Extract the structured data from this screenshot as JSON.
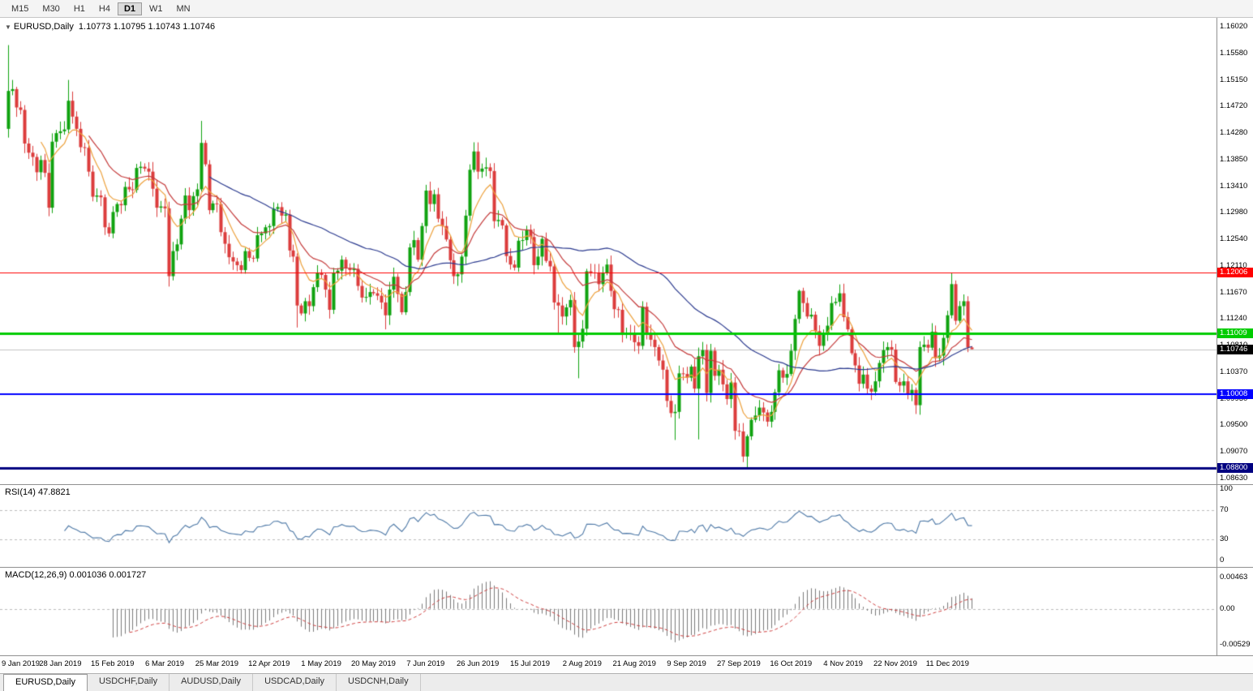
{
  "toolbar": {
    "timeframes": [
      "M15",
      "M30",
      "H1",
      "H4",
      "D1",
      "W1",
      "MN"
    ],
    "active": "D1"
  },
  "chart": {
    "title_symbol": "EURUSD,Daily",
    "title_ohlc": "1.10773 1.10795 1.10743 1.10746"
  },
  "chart_data": {
    "type": "candlestick",
    "symbol": "EURUSD",
    "timeframe": "Daily",
    "x_labels": [
      "9 Jan 2019",
      "28 Jan 2019",
      "15 Feb 2019",
      "6 Mar 2019",
      "25 Mar 2019",
      "12 Apr 2019",
      "1 May 2019",
      "20 May 2019",
      "7 Jun 2019",
      "26 Jun 2019",
      "15 Jul 2019",
      "2 Aug 2019",
      "21 Aug 2019",
      "9 Sep 2019",
      "27 Sep 2019",
      "16 Oct 2019",
      "4 Nov 2019",
      "22 Nov 2019",
      "11 Dec 2019"
    ],
    "x_label_bar_indices": [
      0,
      13,
      26,
      39,
      52,
      65,
      78,
      91,
      104,
      117,
      130,
      143,
      156,
      169,
      182,
      195,
      208,
      221,
      234
    ],
    "price_axis_ticks": [
      "1.16020",
      "1.15580",
      "1.15150",
      "1.14720",
      "1.14280",
      "1.13850",
      "1.13410",
      "1.12980",
      "1.12540",
      "1.12110",
      "1.11670",
      "1.11240",
      "1.10810",
      "1.10370",
      "1.09930",
      "1.09500",
      "1.09070",
      "1.08630"
    ],
    "first_open": 1.1435,
    "closes": [
      1.1497,
      1.15,
      1.147,
      1.1466,
      1.1411,
      1.1396,
      1.1389,
      1.1364,
      1.1384,
      1.1363,
      1.1306,
      1.1414,
      1.1428,
      1.1431,
      1.1434,
      1.1481,
      1.1455,
      1.1435,
      1.1405,
      1.1404,
      1.1365,
      1.1324,
      1.1326,
      1.1323,
      1.1274,
      1.1264,
      1.1299,
      1.1312,
      1.131,
      1.134,
      1.1336,
      1.1335,
      1.1371,
      1.1373,
      1.137,
      1.1365,
      1.1337,
      1.1306,
      1.1308,
      1.1305,
      1.1194,
      1.1235,
      1.1246,
      1.1288,
      1.1326,
      1.1302,
      1.1325,
      1.1336,
      1.1412,
      1.1377,
      1.1302,
      1.1313,
      1.1312,
      1.1266,
      1.1247,
      1.1225,
      1.1218,
      1.1212,
      1.1204,
      1.1235,
      1.1224,
      1.1223,
      1.1261,
      1.1264,
      1.1274,
      1.1276,
      1.1304,
      1.1307,
      1.1293,
      1.1295,
      1.1236,
      1.1226,
      1.1146,
      1.1133,
      1.1153,
      1.1145,
      1.1176,
      1.12,
      1.1196,
      1.1172,
      1.1139,
      1.1199,
      1.1203,
      1.1221,
      1.1207,
      1.1204,
      1.1206,
      1.1178,
      1.1159,
      1.116,
      1.1168,
      1.1166,
      1.1162,
      1.1151,
      1.113,
      1.1172,
      1.1193,
      1.1165,
      1.1135,
      1.1168,
      1.1241,
      1.1253,
      1.1221,
      1.1276,
      1.1334,
      1.1312,
      1.1328,
      1.1288,
      1.1276,
      1.1254,
      1.122,
      1.1194,
      1.1197,
      1.1226,
      1.1293,
      1.1368,
      1.1398,
      1.1365,
      1.137,
      1.1372,
      1.1366,
      1.1284,
      1.1286,
      1.1277,
      1.1227,
      1.1213,
      1.1208,
      1.1252,
      1.1253,
      1.127,
      1.1258,
      1.1212,
      1.1226,
      1.1255,
      1.1219,
      1.121,
      1.1151,
      1.1146,
      1.1128,
      1.1143,
      1.1155,
      1.1078,
      1.1087,
      1.1108,
      1.1202,
      1.12,
      1.1199,
      1.1181,
      1.1199,
      1.1213,
      1.117,
      1.114,
      1.1139,
      1.1099,
      1.11,
      1.1098,
      1.1086,
      1.108,
      1.1144,
      1.11,
      1.109,
      1.1078,
      1.1056,
      1.1041,
      1.099,
      1.097,
      1.0972,
      1.1035,
      1.1034,
      1.1028,
      1.1046,
      1.101,
      1.1063,
      1.1073,
      1.1003,
      1.1072,
      1.1031,
      1.1041,
      1.1017,
      1.0993,
      1.102,
      1.0941,
      1.094,
      1.0899,
      1.0932,
      1.0959,
      1.0966,
      1.0979,
      1.0971,
      1.0956,
      1.0972,
      1.1004,
      1.104,
      1.1028,
      1.1034,
      1.1072,
      1.1124,
      1.117,
      1.115,
      1.1128,
      1.1131,
      1.1104,
      1.108,
      1.1099,
      1.1113,
      1.115,
      1.1152,
      1.1166,
      1.1127,
      1.1107,
      1.1068,
      1.1048,
      1.1018,
      1.1033,
      1.101,
      1.1005,
      1.1022,
      1.1052,
      1.1073,
      1.1078,
      1.1074,
      1.1021,
      1.1015,
      1.1022,
      1.1001,
      1.1008,
      1.0983,
      1.1078,
      1.1082,
      1.1077,
      1.1103,
      1.106,
      1.1064,
      1.1093,
      1.113,
      1.1181,
      1.1121,
      1.1145,
      1.1153,
      1.10773,
      1.10746
    ],
    "wick_overrides": {
      "0": {
        "h": 1.1572
      },
      "15": {
        "h": 1.1515
      },
      "40": {
        "l": 1.1177
      },
      "48": {
        "h": 1.1448
      },
      "72": {
        "l": 1.111
      },
      "94": {
        "l": 1.1107
      },
      "116": {
        "h": 1.1413
      },
      "137": {
        "l": 1.1101
      },
      "142": {
        "l": 1.1027
      },
      "158": {
        "h": 1.1153
      },
      "166": {
        "l": 1.0926
      },
      "172": {
        "l": 1.0927
      },
      "184": {
        "l": 1.0879
      },
      "197": {
        "h": 1.1172
      },
      "235": {
        "h": 1.12
      },
      "240": {
        "h": 1.10795,
        "l": 1.10743
      }
    },
    "hlines": [
      {
        "price": 1.12006,
        "label": "1.12006",
        "color": "#ff0000",
        "width": 1
      },
      {
        "price": 1.11009,
        "label": "1.11009",
        "color": "#00cc00",
        "width": 3
      },
      {
        "price": 1.10008,
        "label": "1.10008",
        "color": "#0000ff",
        "width": 2
      },
      {
        "price": 1.088,
        "label": "1.08800",
        "color": "#000080",
        "width": 3
      }
    ],
    "current_price": {
      "price": 1.10746,
      "label": "1.10746",
      "color": "#000000"
    },
    "moving_averages": [
      {
        "type": "ema",
        "period": 8,
        "color": "#eda13c"
      },
      {
        "type": "ema",
        "period": 20,
        "color": "#c53b3b"
      },
      {
        "type": "sma",
        "period": 50,
        "color": "#2b3a8f"
      }
    ]
  },
  "rsi": {
    "label": "RSI(14)",
    "value": "47.8821",
    "axis_ticks": [
      "100",
      "70",
      "30",
      "0"
    ],
    "levels": [
      70,
      30
    ],
    "color": "#4e79a7"
  },
  "macd": {
    "label": "MACD(12,26,9)",
    "values": "0.001036 0.001727",
    "axis_ticks": [
      "0.00463",
      "0.00",
      "-0.00529"
    ],
    "hist_color": "#7a7a7a",
    "signal_color": "#d04040"
  },
  "tabs": {
    "items": [
      "EURUSD,Daily",
      "USDCHF,Daily",
      "AUDUSD,Daily",
      "USDCAD,Daily",
      "USDCNH,Daily"
    ],
    "active": "EURUSD,Daily"
  },
  "colors": {
    "candle_up": "#10a310",
    "candle_down": "#dc3c3c",
    "current_price_line": "#c4c4c4",
    "level_dash": "#bbbbbb"
  }
}
